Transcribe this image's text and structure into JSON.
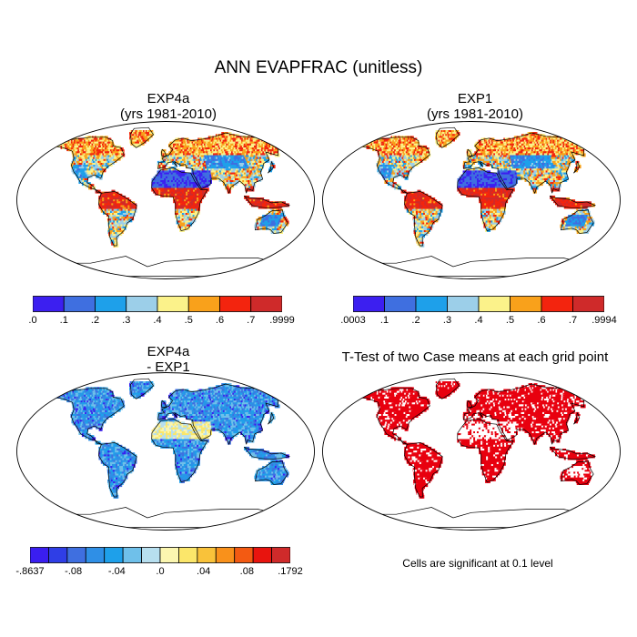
{
  "main_title": "ANN EVAPFRAC (unitless)",
  "panels": [
    {
      "id": "exp4a",
      "title_line1": "EXP4a",
      "title_line2": "(yrs 1981-2010)"
    },
    {
      "id": "exp1",
      "title_line1": "EXP1",
      "title_line2": "(yrs 1981-2010)"
    },
    {
      "id": "diff",
      "title_line1": "EXP4a",
      "title_line2": "- EXP1"
    },
    {
      "id": "ttest",
      "title_line1": "T-Test of two Case means at each grid point",
      "title_line2": ""
    }
  ],
  "colorbars": {
    "exp4a": {
      "colors": [
        "#3c1ff0",
        "#3f6fe0",
        "#1ea0ea",
        "#9ccfe9",
        "#fbf28a",
        "#f9a11b",
        "#f3240e",
        "#cf2a2a"
      ],
      "ticks": [
        ".0",
        ".1",
        ".2",
        ".3",
        ".4",
        ".5",
        ".6",
        ".7",
        ".9999"
      ]
    },
    "exp1": {
      "colors": [
        "#3c1ff0",
        "#3f6fe0",
        "#1ea0ea",
        "#9ccfe9",
        "#fbf28a",
        "#f9a11b",
        "#f3240e",
        "#cf2a2a"
      ],
      "ticks": [
        ".0003",
        ".1",
        ".2",
        ".3",
        ".4",
        ".5",
        ".6",
        ".7",
        ".9994"
      ]
    },
    "diff": {
      "colors": [
        "#3a1ef0",
        "#2f3ee6",
        "#3f6fe0",
        "#2f8fe6",
        "#1ea0ea",
        "#6fc0ea",
        "#b7dfef",
        "#fbf6b0",
        "#fbe66a",
        "#f9c23a",
        "#f9911b",
        "#f35a12",
        "#e8140e",
        "#cf2a2a"
      ],
      "ticks": [
        "-.8637",
        "-.08",
        "-.04",
        ".0",
        ".04",
        ".08",
        ".1792"
      ]
    }
  },
  "ttest_note": "Cells are significant at 0.1 level",
  "colors": {
    "significant": "#e8000f",
    "land_outline": "#000000"
  }
}
